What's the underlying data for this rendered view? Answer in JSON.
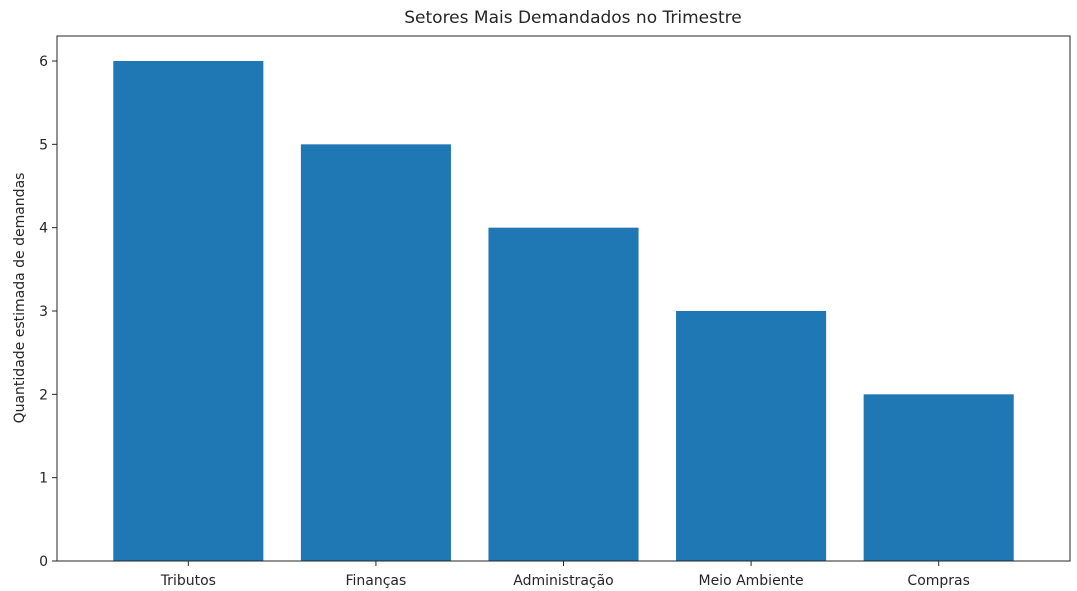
{
  "chart_data": {
    "type": "bar",
    "title": "Setores Mais Demandados no Trimestre",
    "xlabel": "",
    "ylabel": "Quantidade estimada de demandas",
    "categories": [
      "Tributos",
      "Finanças",
      "Administração",
      "Meio Ambiente",
      "Compras"
    ],
    "values": [
      6,
      5,
      4,
      3,
      2
    ],
    "ylim": [
      0,
      6.3
    ],
    "yticks": [
      0,
      1,
      2,
      3,
      4,
      5,
      6
    ],
    "grid": false,
    "colors": {
      "bar": "#1f77b4",
      "axis": "#262626"
    }
  }
}
